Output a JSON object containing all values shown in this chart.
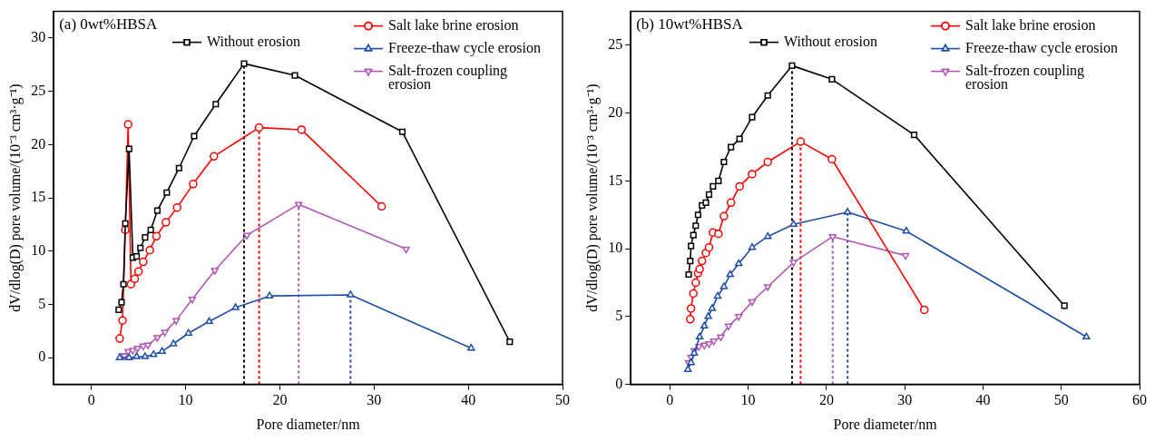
{
  "chart_data": [
    {
      "type": "line",
      "title": "(a) 0wt%HBSA",
      "xlabel": "Pore diameter/nm",
      "ylabel": "dV/dlog(D) pore volume/(10⁻³ cm³·g⁻¹)",
      "xlim": [
        -4,
        50
      ],
      "xticks": [
        0,
        10,
        20,
        30,
        40,
        50
      ],
      "ylim": [
        -2.5,
        32.5
      ],
      "yticks": [
        0,
        5,
        10,
        15,
        20,
        25,
        30
      ],
      "grid": false,
      "legend": "top right",
      "line_style": "solid",
      "series": [
        {
          "name": "Without erosion",
          "color": "#000000",
          "marker": "square",
          "x": [
            2.9,
            3.2,
            3.4,
            3.6,
            4.0,
            4.4,
            4.8,
            5.2,
            5.7,
            6.3,
            7.0,
            8.0,
            9.3,
            10.9,
            13.2,
            16.2,
            21.6,
            33.0,
            44.4
          ],
          "values": [
            4.5,
            5.2,
            6.9,
            12.6,
            19.6,
            9.4,
            9.5,
            10.3,
            11.3,
            12.0,
            13.8,
            15.5,
            17.8,
            20.8,
            23.8,
            27.6,
            26.5,
            21.2,
            1.5
          ]
        },
        {
          "name": "Salt lake brine erosion",
          "color": "#ff0000",
          "marker": "circle",
          "x": [
            3.0,
            3.3,
            3.6,
            3.9,
            4.2,
            4.6,
            5.0,
            5.5,
            6.2,
            6.9,
            7.9,
            9.1,
            10.8,
            13.0,
            17.8,
            22.3,
            30.8
          ],
          "values": [
            1.8,
            3.5,
            12.0,
            21.9,
            6.9,
            7.4,
            8.1,
            9.0,
            10.1,
            11.4,
            12.7,
            14.1,
            16.3,
            18.9,
            21.6,
            21.4,
            14.2
          ]
        },
        {
          "name": "Freeze-thaw cycle erosion",
          "color": "#1f4ea8",
          "marker": "triangle",
          "x": [
            3.0,
            4.0,
            4.8,
            5.7,
            6.6,
            7.5,
            8.7,
            10.3,
            12.5,
            15.3,
            18.9,
            27.5,
            40.3
          ],
          "values": [
            0,
            0,
            0.1,
            0.1,
            0.3,
            0.6,
            1.3,
            2.3,
            3.4,
            4.7,
            5.8,
            5.9,
            0.9
          ]
        },
        {
          "name": "Salt-frozen coupling erosion",
          "color": "#b05ab5",
          "marker": "triangle-down",
          "x": [
            3.3,
            3.5,
            3.9,
            4.4,
            4.9,
            5.5,
            6.0,
            7.0,
            7.8,
            9.0,
            10.7,
            13.1,
            16.5,
            22.0,
            33.4
          ],
          "values": [
            0.2,
            0.2,
            0.6,
            0.7,
            0.9,
            1.1,
            1.2,
            1.9,
            2.4,
            3.5,
            5.5,
            8.2,
            11.5,
            14.4,
            10.2
          ]
        }
      ],
      "ref_lines": [
        {
          "axis": "x",
          "value": 16.2,
          "color": "#000000",
          "line_style": "dotted"
        },
        {
          "axis": "x",
          "value": 17.8,
          "color": "#ff0000",
          "line_style": "dotted"
        },
        {
          "axis": "x",
          "value": 22.0,
          "color": "#b05ab5",
          "line_style": "dotted"
        },
        {
          "axis": "x",
          "value": 27.5,
          "color": "#1f4ea8",
          "line_style": "dotted"
        }
      ]
    },
    {
      "type": "line",
      "title": "(b) 10wt%HBSA",
      "xlabel": "Pore diameter/nm",
      "ylabel": "dV/dlog(D) pore volume/(10⁻³ cm³·g⁻¹)",
      "xlim": [
        -5,
        60
      ],
      "xticks": [
        0,
        10,
        20,
        30,
        40,
        50,
        60
      ],
      "ylim": [
        0,
        27.5
      ],
      "yticks": [
        0,
        5,
        10,
        15,
        20,
        25
      ],
      "grid": false,
      "legend": "top right",
      "line_style": "solid",
      "series": [
        {
          "name": "Without erosion",
          "color": "#000000",
          "marker": "square",
          "x": [
            2.4,
            2.6,
            2.7,
            3.0,
            3.3,
            3.6,
            4.1,
            4.6,
            5.0,
            5.5,
            6.2,
            6.9,
            7.8,
            8.9,
            10.5,
            12.5,
            15.6,
            20.7,
            31.2,
            50.4
          ],
          "values": [
            8.1,
            9.1,
            10.2,
            11.0,
            11.7,
            12.5,
            13.2,
            13.4,
            14.0,
            14.6,
            15.0,
            16.4,
            17.5,
            18.1,
            19.7,
            21.3,
            23.5,
            22.5,
            18.4,
            5.8
          ]
        },
        {
          "name": "Salt lake brine erosion",
          "color": "#ff0000",
          "marker": "circle",
          "x": [
            2.6,
            2.7,
            3.0,
            3.3,
            3.6,
            3.8,
            4.1,
            4.6,
            5.0,
            5.5,
            6.2,
            6.9,
            7.8,
            8.9,
            10.5,
            12.5,
            16.7,
            20.7,
            32.5
          ],
          "values": [
            4.8,
            5.6,
            6.7,
            7.5,
            8.2,
            8.5,
            9.1,
            9.7,
            10.1,
            11.2,
            11.1,
            12.4,
            13.4,
            14.6,
            15.5,
            16.4,
            17.9,
            16.6,
            5.5
          ]
        },
        {
          "name": "Freeze-thaw cycle erosion",
          "color": "#1f4ea8",
          "marker": "triangle",
          "x": [
            2.3,
            2.7,
            3.1,
            3.8,
            4.4,
            4.9,
            5.4,
            6.1,
            6.9,
            7.7,
            8.8,
            10.5,
            12.5,
            15.8,
            22.7,
            30.2,
            53.2
          ],
          "values": [
            1.1,
            1.6,
            2.3,
            3.5,
            4.3,
            5.0,
            5.6,
            6.5,
            7.2,
            8.1,
            8.9,
            10.1,
            10.9,
            11.8,
            12.7,
            11.3,
            3.5
          ]
        },
        {
          "name": "Salt-frozen coupling erosion",
          "color": "#b05ab5",
          "marker": "triangle-down",
          "x": [
            2.4,
            2.7,
            3.1,
            3.7,
            4.4,
            5.0,
            5.6,
            6.5,
            7.5,
            8.8,
            10.5,
            12.5,
            15.8,
            20.8,
            30.1
          ],
          "values": [
            1.6,
            2.0,
            2.5,
            2.8,
            2.9,
            3.0,
            3.2,
            3.5,
            4.3,
            5.0,
            6.1,
            7.2,
            9.0,
            10.9,
            9.5
          ]
        }
      ],
      "ref_lines": [
        {
          "axis": "x",
          "value": 15.6,
          "color": "#000000",
          "line_style": "dotted"
        },
        {
          "axis": "x",
          "value": 16.7,
          "color": "#ff0000",
          "line_style": "dotted"
        },
        {
          "axis": "x",
          "value": 20.8,
          "color": "#b05ab5",
          "line_style": "dotted"
        },
        {
          "axis": "x",
          "value": 22.7,
          "color": "#1f4ea8",
          "line_style": "dotted"
        }
      ]
    }
  ]
}
